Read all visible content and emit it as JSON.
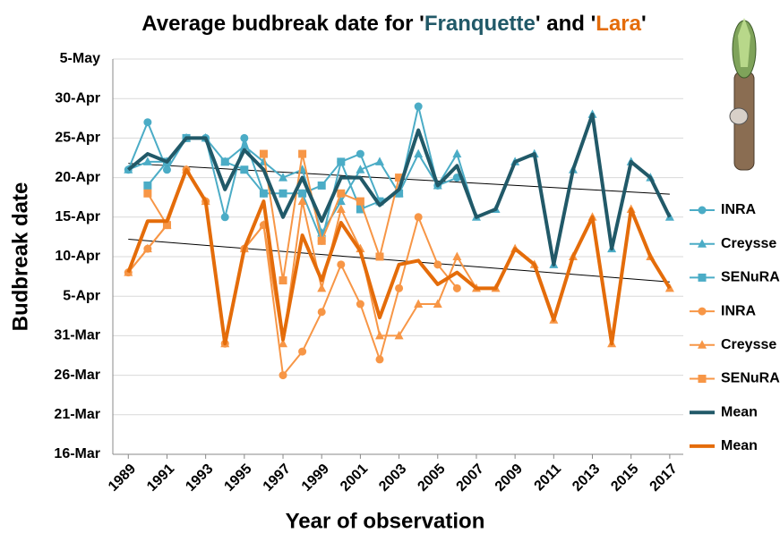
{
  "chart_data": {
    "type": "line",
    "title": [
      "Average budbreak date for '",
      "Franquette",
      "' and '",
      "Lara",
      "'"
    ],
    "title_colors": [
      "#000000",
      "#215968",
      "#000000",
      "#e46c0a",
      "#000000"
    ],
    "x_label": "Year of observation",
    "y_label": "Budbreak date",
    "x": [
      1989,
      1990,
      1991,
      1992,
      1993,
      1994,
      1995,
      1996,
      1997,
      1998,
      1999,
      2000,
      2001,
      2002,
      2003,
      2004,
      2005,
      2006,
      2007,
      2008,
      2009,
      2010,
      2011,
      2012,
      2013,
      2014,
      2015,
      2016,
      2017
    ],
    "xlim": [
      1988.2,
      2017.7
    ],
    "xticks": [
      1989,
      1991,
      1993,
      1995,
      1997,
      1999,
      2001,
      2003,
      2005,
      2007,
      2009,
      2011,
      2013,
      2015,
      2017
    ],
    "ylim": [
      75,
      125
    ],
    "yticks": [
      {
        "value": 75,
        "label": "16-Mar"
      },
      {
        "value": 80,
        "label": "21-Mar"
      },
      {
        "value": 85,
        "label": "26-Mar"
      },
      {
        "value": 90,
        "label": "31-Mar"
      },
      {
        "value": 95,
        "label": "5-Apr"
      },
      {
        "value": 100,
        "label": "10-Apr"
      },
      {
        "value": 105,
        "label": "15-Apr"
      },
      {
        "value": 110,
        "label": "20-Apr"
      },
      {
        "value": 115,
        "label": "25-Apr"
      },
      {
        "value": 120,
        "label": "30-Apr"
      },
      {
        "value": 125,
        "label": "5-May"
      }
    ],
    "grid": true,
    "series": [
      {
        "name": "INRA",
        "color": "#4bacc6",
        "marker": "circle",
        "width": 2,
        "values": [
          111,
          117,
          111,
          115,
          115,
          105,
          115,
          108,
          null,
          108,
          102,
          112,
          113,
          107,
          108,
          119,
          109,
          110,
          null,
          null,
          null,
          null,
          null,
          null,
          null,
          null,
          null,
          null,
          null
        ]
      },
      {
        "name": "Creysse",
        "color": "#4bacc6",
        "marker": "triangle",
        "width": 2,
        "values": [
          111,
          112,
          112,
          115,
          115,
          112,
          114,
          112,
          110,
          111,
          103,
          107,
          111,
          112,
          108,
          113,
          109,
          113,
          105,
          106,
          112,
          113,
          99,
          111,
          118,
          101,
          112,
          110,
          105
        ]
      },
      {
        "name": "SENuRA",
        "color": "#4bacc6",
        "marker": "square",
        "width": 2,
        "values": [
          null,
          109,
          112,
          115,
          null,
          112,
          111,
          108,
          108,
          108,
          109,
          112,
          106,
          107,
          108,
          null,
          null,
          null,
          null,
          null,
          null,
          null,
          null,
          null,
          null,
          null,
          null,
          null,
          null
        ]
      },
      {
        "name": "INRA",
        "color": "#f79646",
        "marker": "circle",
        "width": 2,
        "values": [
          98,
          101,
          104,
          111,
          107,
          89,
          101,
          104,
          85,
          88,
          93,
          99,
          94,
          87,
          96,
          105,
          99,
          96,
          null,
          null,
          null,
          null,
          null,
          null,
          null,
          null,
          null,
          null,
          null
        ]
      },
      {
        "name": "Creysse",
        "color": "#f79646",
        "marker": "triangle",
        "width": 2,
        "values": [
          98,
          101,
          104,
          111,
          107,
          89,
          101,
          104,
          89,
          107,
          96,
          106,
          101,
          90,
          90,
          94,
          94,
          100,
          96,
          96,
          101,
          99,
          92,
          100,
          105,
          89,
          106,
          100,
          96
        ]
      },
      {
        "name": "SENuRA",
        "color": "#f79646",
        "marker": "square",
        "width": 2,
        "values": [
          null,
          108,
          104,
          null,
          null,
          null,
          null,
          113,
          97,
          113,
          102,
          108,
          107,
          100,
          110,
          null,
          null,
          null,
          null,
          null,
          null,
          null,
          null,
          null,
          null,
          null,
          null,
          null,
          null
        ]
      },
      {
        "name": "Mean",
        "color": "#215968",
        "marker": null,
        "width": 4,
        "values": [
          111,
          113,
          112,
          115,
          115,
          108.5,
          113.5,
          111,
          105,
          110,
          104.5,
          110,
          110,
          106.5,
          108.5,
          116,
          109,
          111.5,
          105,
          106,
          112,
          113,
          99,
          111,
          118,
          101,
          112,
          110,
          105
        ]
      },
      {
        "name": "Mean",
        "color": "#e46c0a",
        "marker": null,
        "width": 4,
        "values": [
          98,
          104.5,
          104.5,
          111,
          107,
          89,
          101,
          107,
          89.5,
          102.7,
          97,
          104.3,
          100.7,
          92.3,
          99,
          99.5,
          96.5,
          98,
          96,
          96,
          101,
          99,
          92,
          100,
          105,
          89,
          106,
          100,
          96
        ]
      }
    ],
    "trendlines": [
      {
        "color": "#000000",
        "x": [
          1989,
          2017
        ],
        "values": [
          111.8,
          107.9
        ]
      },
      {
        "color": "#000000",
        "x": [
          1989,
          2017
        ],
        "values": [
          102.2,
          96.8
        ]
      }
    ]
  }
}
